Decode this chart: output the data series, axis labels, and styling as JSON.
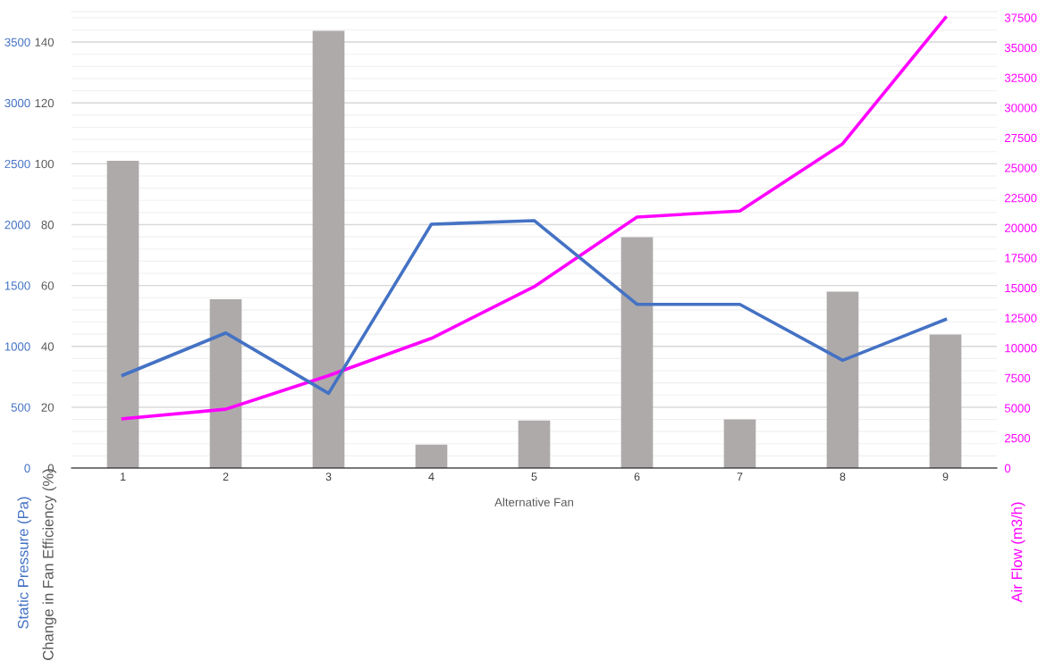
{
  "chart_data": {
    "type": "bar",
    "categories": [
      "1",
      "2",
      "3",
      "4",
      "5",
      "6",
      "7",
      "8",
      "9"
    ],
    "xlabel": "Alternative Fan",
    "ylabel": "Change in Fan Efficiency (%)",
    "y2label": "Air Flow (m3/h)",
    "y3label": "Static Pressure (Pa)",
    "series": [
      {
        "color": "#aeaaaa",
        "values": [
          101,
          55.5,
          143.7,
          7.7,
          15.6,
          75.9,
          16,
          58,
          43.9
        ]
      },
      {
        "type": "line",
        "axis": "y3",
        "color": "#4472c4",
        "values": [
          763,
          1110,
          614,
          2003,
          2033,
          1345,
          1345,
          885,
          1221
        ]
      },
      {
        "type": "line",
        "axis": "y2",
        "color": "#ff00ff",
        "values": [
          4100,
          4900,
          7700,
          10800,
          15100,
          20900,
          21400,
          27000,
          37500
        ]
      }
    ],
    "ylim": [
      0,
      150
    ],
    "yticks": [
      0,
      20,
      40,
      60,
      80,
      100,
      120,
      140
    ],
    "y2lim": [
      0,
      38000
    ],
    "y2ticks": [
      0,
      2500,
      5000,
      7500,
      10000,
      12500,
      15000,
      17500,
      20000,
      22500,
      25000,
      27500,
      30000,
      32500,
      35000,
      37500
    ],
    "y3lim": [
      0,
      3750
    ],
    "y3ticks": [
      0,
      500,
      1000,
      1500,
      2000,
      2500,
      3000,
      3500
    ],
    "grid": "y",
    "line_style": "solid",
    "marker": "none",
    "legend": false
  }
}
